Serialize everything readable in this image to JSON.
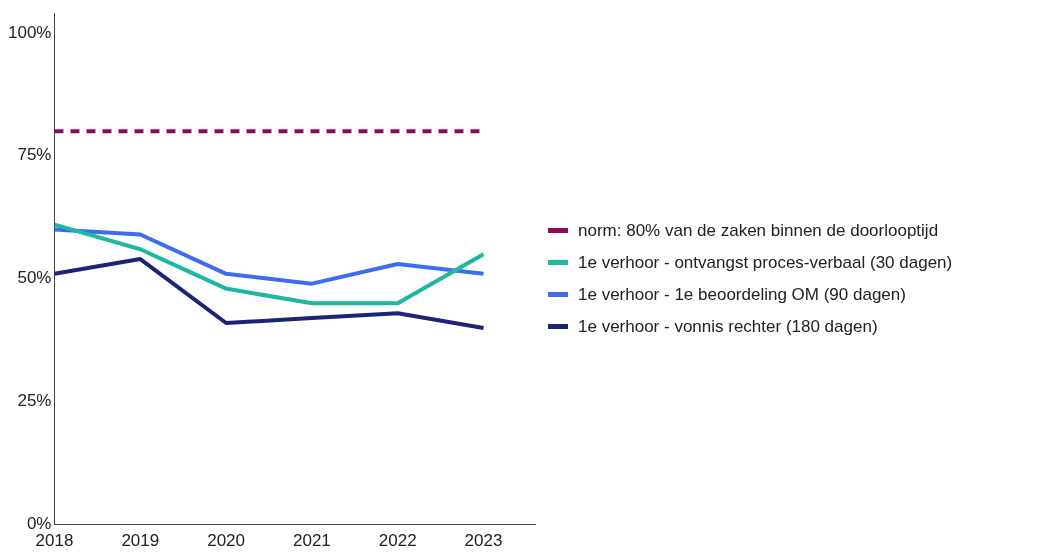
{
  "chart_data": {
    "type": "line",
    "x": [
      2018,
      2019,
      2020,
      2021,
      2022,
      2023
    ],
    "xlim": [
      2018,
      2023.6
    ],
    "xticks": [
      2018,
      2019,
      2020,
      2021,
      2022,
      2023
    ],
    "ylim": [
      0,
      104
    ],
    "yticks": [
      {
        "value": 0,
        "label": "0%"
      },
      {
        "value": 25,
        "label": "25%"
      },
      {
        "value": 50,
        "label": "50%"
      },
      {
        "value": 75,
        "label": "75%"
      },
      {
        "value": 100,
        "label": "100%"
      }
    ],
    "grid": false,
    "legend": "right",
    "marker": "none",
    "series": [
      {
        "name": "norm: 80% van de zaken binnen de doorlooptijd",
        "color": "#8e0c57",
        "values": [
          80,
          80,
          80,
          80,
          80,
          80
        ],
        "line_style": "dashed"
      },
      {
        "name": "1e verhoor - ontvangst proces-verbaal (30 dagen)",
        "color": "#1cb8a0",
        "values": [
          61,
          56,
          48,
          45,
          45,
          55
        ]
      },
      {
        "name": "1e verhoor - 1e beoordeling OM (90 dagen)",
        "color": "#3d6cf2",
        "values": [
          60,
          59,
          51,
          49,
          53,
          51
        ]
      },
      {
        "name": "1e verhoor - vonnis rechter (180 dagen)",
        "color": "#1b2479",
        "values": [
          51,
          54,
          41,
          42,
          43,
          40
        ]
      }
    ]
  }
}
